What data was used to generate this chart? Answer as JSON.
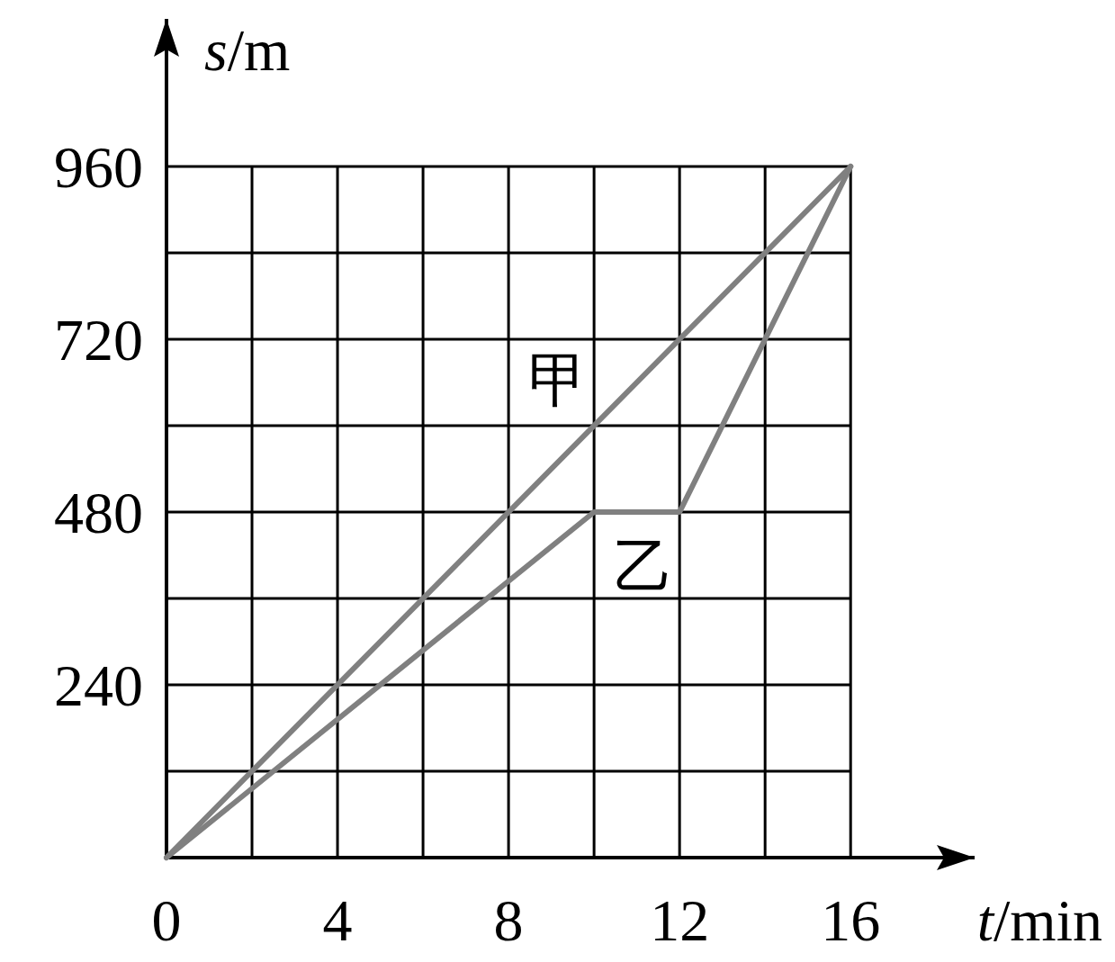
{
  "chart_data": {
    "type": "line",
    "xlabel": "*t*/min",
    "ylabel": "*s*/m",
    "x": [
      0,
      10,
      12,
      16
    ],
    "series": [
      {
        "name": "甲",
        "color": "#808080",
        "x": [
          0,
          16
        ],
        "values": [
          0,
          960
        ]
      },
      {
        "name": "乙",
        "color": "#808080",
        "values": [
          0,
          480,
          480,
          960
        ]
      }
    ],
    "xlim": [
      0,
      18.9
    ],
    "ylim": [
      0,
      1165
    ],
    "xticks": [
      0,
      {
        "value": 2,
        "label": null
      },
      4,
      {
        "value": 6,
        "label": null
      },
      8,
      {
        "value": 10,
        "label": null
      },
      12,
      {
        "value": 14,
        "label": null
      },
      16
    ],
    "yticks": [
      {
        "value": 0,
        "label": null
      },
      {
        "value": 120,
        "label": null
      },
      240,
      {
        "value": 360,
        "label": null
      },
      480,
      {
        "value": 600,
        "label": null
      },
      720,
      {
        "value": 840,
        "label": null
      },
      960
    ],
    "grid": true
  }
}
